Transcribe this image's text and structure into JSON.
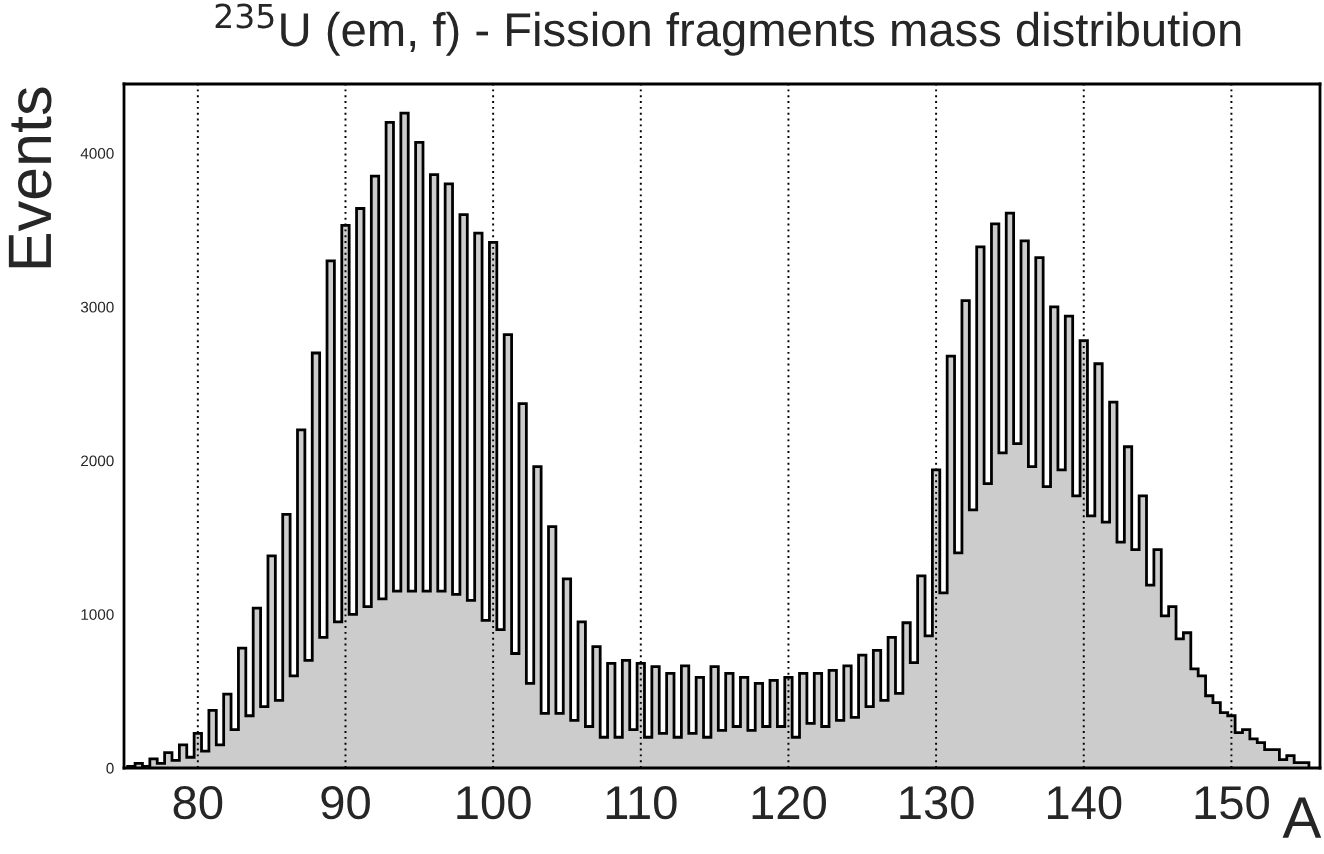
{
  "chart_data": {
    "type": "histogram",
    "title": "$^{235}$U (em, f) - Fission fragments mass distribution",
    "xlabel": "A",
    "ylabel": "Events",
    "color": "#cccccc",
    "bins": [
      75.25,
      75.75,
      76.25,
      76.75,
      77.25,
      77.75,
      78.25,
      78.75,
      79.25,
      79.75,
      80.25,
      80.75,
      81.25,
      81.75,
      82.25,
      82.75,
      83.25,
      83.75,
      84.25,
      84.75,
      85.25,
      85.75,
      86.25,
      86.75,
      87.25,
      87.75,
      88.25,
      88.75,
      89.25,
      89.75,
      90.25,
      90.75,
      91.25,
      91.75,
      92.25,
      92.75,
      93.25,
      93.75,
      94.25,
      94.75,
      95.25,
      95.75,
      96.25,
      96.75,
      97.25,
      97.75,
      98.25,
      98.75,
      99.25,
      99.75,
      100.25,
      100.75,
      101.25,
      101.75,
      102.25,
      102.75,
      103.25,
      103.75,
      104.25,
      104.75,
      105.25,
      105.75,
      106.25,
      106.75,
      107.25,
      107.75,
      108.25,
      108.75,
      109.25,
      109.75,
      110.25,
      110.75,
      111.25,
      111.75,
      112.25,
      112.75,
      113.25,
      113.75,
      114.25,
      114.75,
      115.25,
      115.75,
      116.25,
      116.75,
      117.25,
      117.75,
      118.25,
      118.75,
      119.25,
      119.75,
      120.25,
      120.75,
      121.25,
      121.75,
      122.25,
      122.75,
      123.25,
      123.75,
      124.25,
      124.75,
      125.25,
      125.75,
      126.25,
      126.75,
      127.25,
      127.75,
      128.25,
      128.75,
      129.25,
      129.75,
      130.25,
      130.75,
      131.25,
      131.75,
      132.25,
      132.75,
      133.25,
      133.75,
      134.25,
      134.75,
      135.25,
      135.75,
      136.25,
      136.75,
      137.25,
      137.75,
      138.25,
      138.75,
      139.25,
      139.75,
      140.25,
      140.75,
      141.25,
      141.75,
      142.25,
      142.75,
      143.25,
      143.75,
      144.25,
      144.75,
      145.25,
      145.75,
      146.25,
      146.75,
      147.25,
      147.75,
      148.25,
      148.75,
      149.25,
      149.75,
      150.25,
      150.75,
      151.25,
      151.75,
      152.25,
      152.75,
      153.25,
      153.75,
      154.25,
      154.75,
      155.25
    ],
    "values": [
      10,
      30,
      10,
      60,
      30,
      100,
      50,
      150,
      70,
      225,
      110,
      375,
      150,
      480,
      250,
      780,
      340,
      1040,
      400,
      1380,
      440,
      1650,
      600,
      2200,
      700,
      2700,
      850,
      3300,
      950,
      3530,
      1000,
      3640,
      1050,
      3850,
      1100,
      4200,
      1150,
      4260,
      1150,
      4070,
      1150,
      3860,
      1150,
      3800,
      1130,
      3600,
      1090,
      3480,
      960,
      3420,
      900,
      2820,
      745,
      2370,
      550,
      1960,
      355,
      1570,
      355,
      1230,
      310,
      950,
      270,
      790,
      200,
      680,
      200,
      700,
      250,
      680,
      200,
      660,
      225,
      615,
      200,
      665,
      225,
      590,
      200,
      660,
      245,
      615,
      270,
      590,
      245,
      550,
      270,
      570,
      270,
      590,
      200,
      615,
      290,
      615,
      270,
      635,
      310,
      665,
      330,
      735,
      400,
      765,
      440,
      850,
      485,
      945,
      685,
      1250,
      860,
      1940,
      1140,
      2680,
      1400,
      3040,
      1680,
      3390,
      1850,
      3540,
      2050,
      3610,
      2110,
      3430,
      1960,
      3320,
      1830,
      3000,
      1940,
      2940,
      1770,
      2780,
      1640,
      2630,
      1600,
      2380,
      1470,
      2090,
      1420,
      1770,
      1190,
      1420,
      990,
      1050,
      840,
      880,
      645,
      600,
      470,
      425,
      360,
      340,
      230,
      250,
      190,
      165,
      120,
      120,
      55,
      80,
      35,
      35
    ],
    "xlim": [
      75,
      156
    ],
    "ylim": [
      0,
      4450
    ],
    "xticks": [
      80,
      90,
      100,
      110,
      120,
      130,
      140,
      150
    ],
    "yticks": [
      0,
      1000,
      2000,
      3000,
      4000
    ],
    "grid": "x"
  }
}
